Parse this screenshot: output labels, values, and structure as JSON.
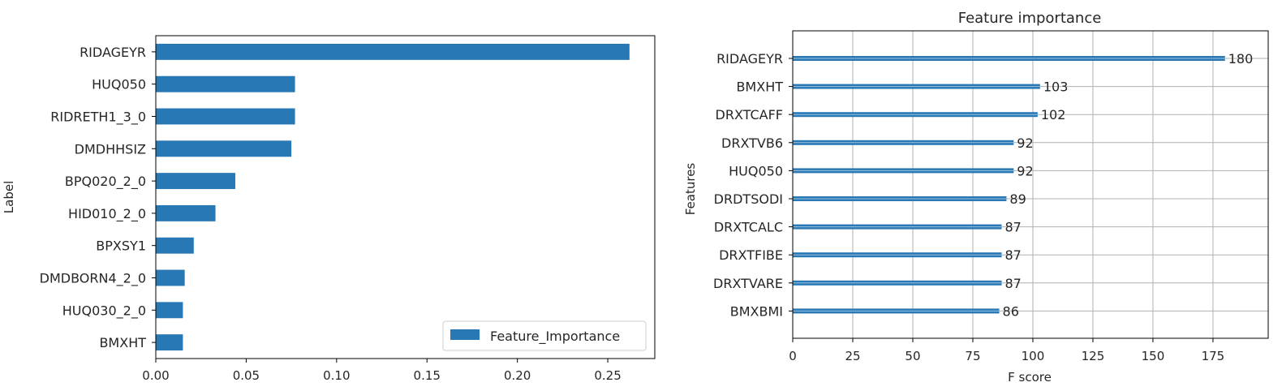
{
  "chart_data": [
    {
      "type": "bar",
      "orientation": "horizontal",
      "title": "",
      "xlabel": "",
      "ylabel": "Label",
      "categories": [
        "RIDAGEYR",
        "HUQ050",
        "RIDRETH1_3_0",
        "DMDHHSIZ",
        "BPQ020_2_0",
        "HID010_2_0",
        "BPXSY1",
        "DMDBORN4_2_0",
        "HUQ030_2_0",
        "BMXHT"
      ],
      "series": [
        {
          "name": "Feature_Importance",
          "values": [
            0.262,
            0.077,
            0.077,
            0.075,
            0.044,
            0.033,
            0.021,
            0.016,
            0.015,
            0.015
          ]
        }
      ],
      "xlim": [
        0,
        0.276
      ],
      "xticks": [
        0.0,
        0.05,
        0.1,
        0.15,
        0.2,
        0.25
      ],
      "xtick_labels": [
        "0.00",
        "0.05",
        "0.10",
        "0.15",
        "0.20",
        "0.25"
      ],
      "grid": false,
      "legend": {
        "position": "lower-right",
        "entries": [
          "Feature_Importance"
        ]
      },
      "color": "#2878b5"
    },
    {
      "type": "bar",
      "orientation": "horizontal",
      "title": "Feature importance",
      "xlabel": "F score",
      "ylabel": "Features",
      "categories": [
        "RIDAGEYR",
        "BMXHT",
        "DRXTCAFF",
        "DRXTVB6",
        "HUQ050",
        "DRDTSODI",
        "DRXTCALC",
        "DRXTFIBE",
        "DRXTVARE",
        "BMXBMI"
      ],
      "values": [
        180,
        103,
        102,
        92,
        92,
        89,
        87,
        87,
        87,
        86
      ],
      "value_labels": [
        "180",
        "103",
        "102",
        "92",
        "92",
        "89",
        "87",
        "87",
        "87",
        "86"
      ],
      "xlim": [
        0,
        198
      ],
      "xticks": [
        0,
        25,
        50,
        75,
        100,
        125,
        150,
        175
      ],
      "xtick_labels": [
        "0",
        "25",
        "50",
        "75",
        "100",
        "125",
        "150",
        "175"
      ],
      "grid": true,
      "color": "#2878b5"
    }
  ]
}
